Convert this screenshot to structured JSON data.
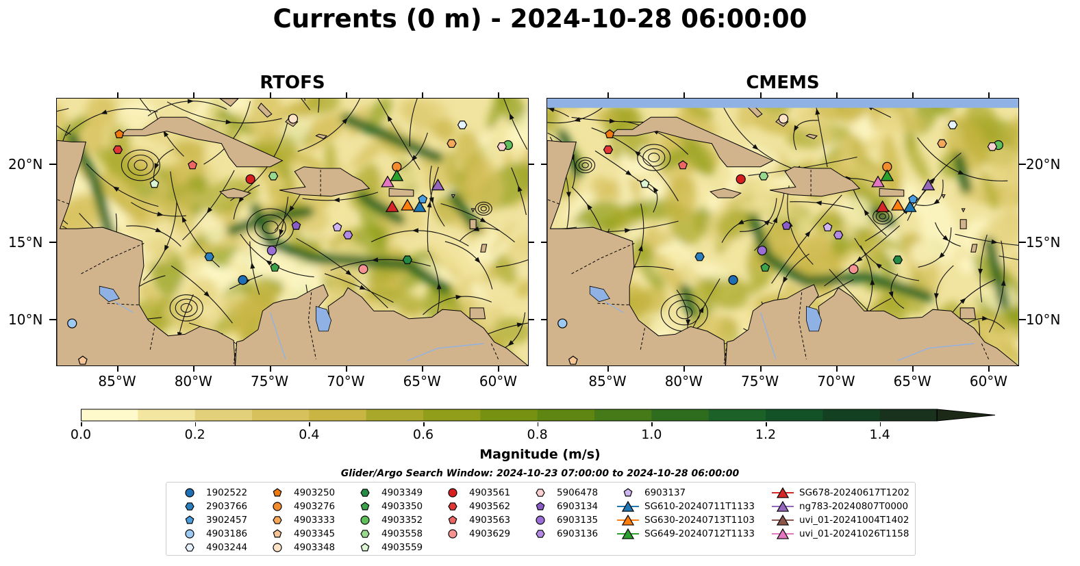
{
  "title": "Currents (0 m) - 2024-10-28 06:00:00",
  "panels": [
    {
      "name": "RTOFS"
    },
    {
      "name": "CMEMS"
    }
  ],
  "map_extent": {
    "lon": [
      -89,
      -58
    ],
    "lat": [
      7,
      24.3
    ]
  },
  "lon_ticks": [
    {
      "value": -85,
      "label": "85°W"
    },
    {
      "value": -80,
      "label": "80°W"
    },
    {
      "value": -75,
      "label": "75°W"
    },
    {
      "value": -70,
      "label": "70°W"
    },
    {
      "value": -65,
      "label": "65°W"
    },
    {
      "value": -60,
      "label": "60°W"
    }
  ],
  "lat_ticks": [
    {
      "value": 10,
      "label": "10°N"
    },
    {
      "value": 15,
      "label": "15°N"
    },
    {
      "value": 20,
      "label": "20°N"
    }
  ],
  "colors": {
    "land": "#d2b48c",
    "ocean_low": "#ffffc6",
    "ocean_high": "#1b2a12",
    "lake": "#8fb1e3"
  },
  "colorbar": {
    "label": "Magnitude (m/s)",
    "range": [
      0,
      1.5
    ],
    "extend": "max",
    "ticks": [
      "0.0",
      "0.2",
      "0.4",
      "0.6",
      "0.8",
      "1.0",
      "1.2",
      "1.4"
    ],
    "levels": [
      "#fffacb",
      "#f3e6a0",
      "#e2d07b",
      "#d6c15c",
      "#c9b544",
      "#aaa82a",
      "#909e19",
      "#779112",
      "#5f8512",
      "#467917",
      "#2f6d1e",
      "#1b6128",
      "#135127",
      "#144022",
      "#18321d",
      "#1b2916"
    ]
  },
  "search_window": "Glider/Argo Search Window: 2024-10-23 07:00:00 to 2024-10-28 06:00:00",
  "legend": [
    {
      "label": "1902522",
      "marker": "circle",
      "color": "#1f6fb4"
    },
    {
      "label": "2903766",
      "marker": "hexagon",
      "color": "#2c7fbf"
    },
    {
      "label": "3902457",
      "marker": "pentagon",
      "color": "#4a9ee0"
    },
    {
      "label": "4903186",
      "marker": "circle",
      "color": "#9ccaf2"
    },
    {
      "label": "4903244",
      "marker": "hexagon",
      "color": "#e6f2fd"
    },
    {
      "label": "4903250",
      "marker": "pentagon",
      "color": "#f07a10"
    },
    {
      "label": "4903276",
      "marker": "circle",
      "color": "#f28c2d"
    },
    {
      "label": "4903333",
      "marker": "hexagon",
      "color": "#f5a85a"
    },
    {
      "label": "4903345",
      "marker": "pentagon",
      "color": "#f7c593"
    },
    {
      "label": "4903348",
      "marker": "circle",
      "color": "#fde3c8"
    },
    {
      "label": "4903349",
      "marker": "hexagon",
      "color": "#238b45"
    },
    {
      "label": "4903350",
      "marker": "pentagon",
      "color": "#3ca34a"
    },
    {
      "label": "4903352",
      "marker": "circle",
      "color": "#5fbf5a"
    },
    {
      "label": "4903558",
      "marker": "hexagon",
      "color": "#98d88e"
    },
    {
      "label": "4903559",
      "marker": "pentagon",
      "color": "#dcf5d4"
    },
    {
      "label": "4903561",
      "marker": "circle",
      "color": "#d62020"
    },
    {
      "label": "4903562",
      "marker": "hexagon",
      "color": "#e03636"
    },
    {
      "label": "4903563",
      "marker": "pentagon",
      "color": "#ee6565"
    },
    {
      "label": "4903629",
      "marker": "circle",
      "color": "#f59292"
    },
    {
      "label": "5906478",
      "marker": "hexagon",
      "color": "#fbd0d0"
    },
    {
      "label": "6903134",
      "marker": "pentagon",
      "color": "#8a5cc8"
    },
    {
      "label": "6903135",
      "marker": "circle",
      "color": "#9b6fd6"
    },
    {
      "label": "6903136",
      "marker": "hexagon",
      "color": "#b28ae3"
    },
    {
      "label": "6903137",
      "marker": "pentagon",
      "color": "#cfb6f0"
    },
    {
      "label": "SG610-20240711T1133",
      "marker": "triangle",
      "color": "#1f77b4"
    },
    {
      "label": "SG630-20240713T1103",
      "marker": "triangle",
      "color": "#ff7f0e"
    },
    {
      "label": "SG649-20240712T1133",
      "marker": "triangle",
      "color": "#2ca02c"
    },
    {
      "label": "SG678-20240617T1202",
      "marker": "triangle",
      "color": "#d62728"
    },
    {
      "label": "ng783-20240807T0000",
      "marker": "triangle",
      "color": "#9467bd"
    },
    {
      "label": "uvi_01-20241004T1402",
      "marker": "triangle",
      "color": "#8c564b"
    },
    {
      "label": "uvi_01-20241026T1158",
      "marker": "triangle",
      "color": "#e377c2"
    }
  ],
  "platform_positions": [
    {
      "id": "1902522",
      "lon": -76.8,
      "lat": 12.6
    },
    {
      "id": "2903766",
      "lon": -79.0,
      "lat": 14.1
    },
    {
      "id": "4903186",
      "lon": -88.0,
      "lat": 9.8
    },
    {
      "id": "4903244",
      "lon": -62.4,
      "lat": 22.6
    },
    {
      "id": "4903250",
      "lon": -84.9,
      "lat": 22.0
    },
    {
      "id": "4903276",
      "lon": -66.7,
      "lat": 19.9
    },
    {
      "id": "4903333",
      "lon": -63.1,
      "lat": 21.4
    },
    {
      "id": "4903348",
      "lon": -73.5,
      "lat": 23.0
    },
    {
      "id": "4903349",
      "lon": -66.0,
      "lat": 13.9
    },
    {
      "id": "4903350",
      "lon": -74.7,
      "lat": 13.4
    },
    {
      "id": "4903352",
      "lon": -59.4,
      "lat": 21.3
    },
    {
      "id": "4903558",
      "lon": -74.8,
      "lat": 19.3
    },
    {
      "id": "4903559",
      "lon": -82.6,
      "lat": 18.8
    },
    {
      "id": "4903561",
      "lon": -76.3,
      "lat": 19.1
    },
    {
      "id": "4903562",
      "lon": -85.0,
      "lat": 21.0
    },
    {
      "id": "4903563",
      "lon": -80.1,
      "lat": 20.0
    },
    {
      "id": "4903629",
      "lon": -68.9,
      "lat": 13.3
    },
    {
      "id": "5906478",
      "lon": -59.8,
      "lat": 21.2
    },
    {
      "id": "6903134",
      "lon": -73.3,
      "lat": 16.1
    },
    {
      "id": "6903135",
      "lon": -74.9,
      "lat": 14.5
    },
    {
      "id": "6903136",
      "lon": -69.9,
      "lat": 15.5
    },
    {
      "id": "6903137",
      "lon": -70.6,
      "lat": 16.0
    },
    {
      "id": "4903345",
      "lon": -87.3,
      "lat": 7.4
    },
    {
      "id": "SG610-20240711T1133",
      "lon": -65.2,
      "lat": 17.3
    },
    {
      "id": "SG630-20240713T1103",
      "lon": -66.0,
      "lat": 17.4
    },
    {
      "id": "SG649-20240712T1133",
      "lon": -66.7,
      "lat": 19.3
    },
    {
      "id": "SG678-20240617T1202",
      "lon": -67.0,
      "lat": 17.3
    },
    {
      "id": "ng783-20240807T0000",
      "lon": -64.0,
      "lat": 18.7
    },
    {
      "id": "uvi_01-20241026T1158",
      "lon": -67.3,
      "lat": 18.9
    },
    {
      "id": "3902457",
      "lon": -65.0,
      "lat": 17.8
    }
  ]
}
